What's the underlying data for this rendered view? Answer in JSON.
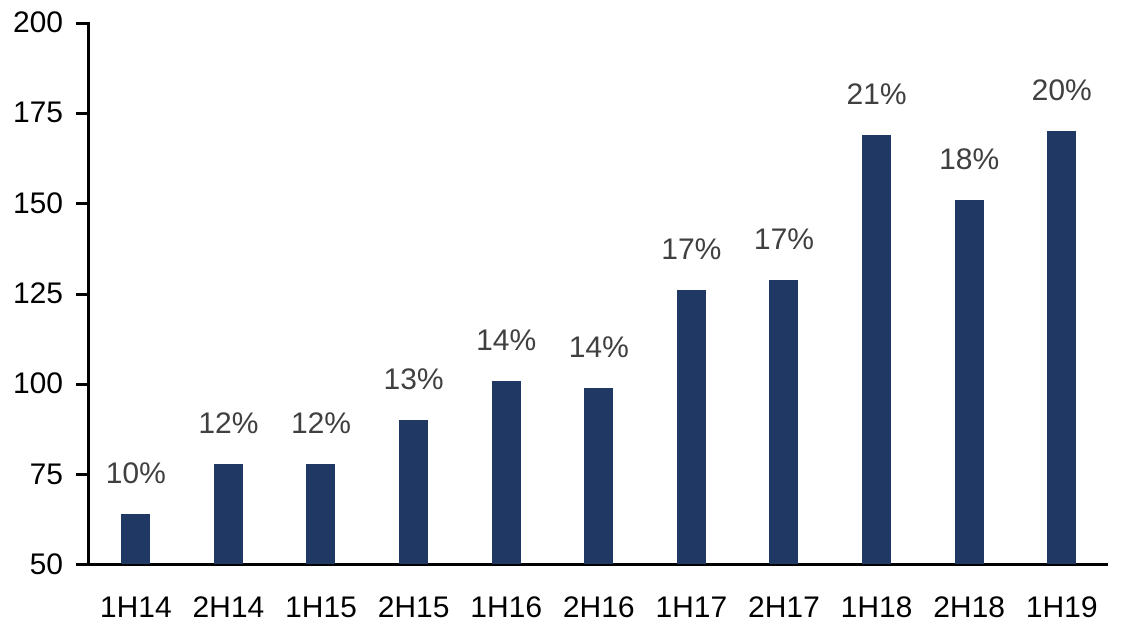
{
  "chart_data": {
    "type": "bar",
    "title": "",
    "xlabel": "",
    "ylabel": "",
    "categories": [
      "1H14",
      "2H14",
      "1H15",
      "2H15",
      "1H16",
      "2H16",
      "1H17",
      "2H17",
      "1H18",
      "2H18",
      "1H19"
    ],
    "values": [
      64,
      78,
      78,
      90,
      101,
      99,
      126,
      129,
      169,
      151,
      170
    ],
    "bar_labels": [
      "10%",
      "12%",
      "12%",
      "13%",
      "14%",
      "14%",
      "17%",
      "17%",
      "21%",
      "18%",
      "20%"
    ],
    "ylim": [
      50,
      200
    ],
    "yticks": [
      50,
      75,
      100,
      125,
      150,
      175,
      200
    ],
    "grid": false,
    "legend": false,
    "colors": {
      "bar": "#1F3864",
      "bar_label": "#404040",
      "axis_text": "#000000",
      "axis_line": "#000000",
      "background": "#FFFFFF"
    }
  }
}
